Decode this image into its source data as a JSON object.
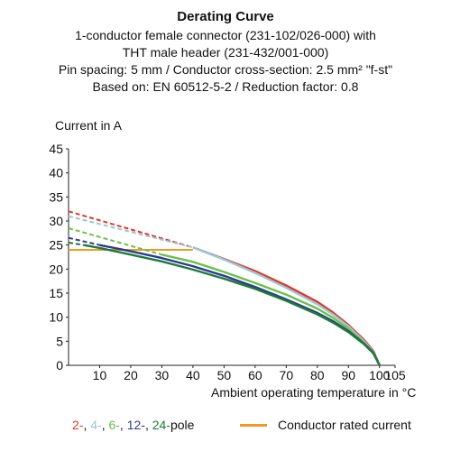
{
  "chart_data": {
    "type": "line",
    "title": "Derating Curve",
    "subtitle_lines": [
      "1-conductor female connector (231-102/026-000) with",
      "THT male header (231-432/001-000)",
      "Pin spacing: 5 mm / Conductor cross-section: 2.5 mm² \"f-st\"",
      "Based on: EN 60512-5-2 / Reduction factor: 0.8"
    ],
    "ylabel": "Current in A",
    "xlabel": "Ambient operating temperature in °C",
    "xlim": [
      0,
      105
    ],
    "ylim": [
      0,
      45
    ],
    "xticks": [
      10,
      20,
      30,
      40,
      50,
      60,
      70,
      80,
      90,
      100,
      105
    ],
    "yticks": [
      0,
      5,
      10,
      15,
      20,
      25,
      30,
      35,
      40,
      45
    ],
    "grid": false,
    "legend_position": "bottom",
    "rated_current": {
      "name": "Conductor rated current",
      "color": "#f39a1e",
      "x": [
        0,
        40
      ],
      "y": [
        24,
        24
      ]
    },
    "series": [
      {
        "label": "2",
        "color": "#e2382c",
        "dashed": {
          "x": [
            0,
            40
          ],
          "y": [
            32,
            24.5
          ]
        },
        "solid": {
          "x": [
            40,
            50,
            60,
            70,
            80,
            85,
            90,
            95,
            98,
            100
          ],
          "y": [
            24.5,
            22.1,
            19.6,
            16.6,
            13.2,
            11.0,
            8.4,
            5.3,
            3.0,
            0
          ]
        }
      },
      {
        "label": "4",
        "color": "#98c8d6",
        "dashed": {
          "x": [
            0,
            40
          ],
          "y": [
            31,
            24.5
          ]
        },
        "solid": {
          "x": [
            40,
            50,
            60,
            70,
            80,
            85,
            90,
            95,
            98,
            100
          ],
          "y": [
            24.5,
            22.0,
            19.2,
            16.1,
            12.7,
            10.6,
            8.1,
            5.0,
            2.8,
            0
          ]
        }
      },
      {
        "label": "6",
        "color": "#6cc04a",
        "dashed": {
          "x": [
            0,
            30
          ],
          "y": [
            28.5,
            23
          ]
        },
        "solid": {
          "x": [
            30,
            40,
            50,
            60,
            70,
            80,
            85,
            90,
            95,
            98,
            100
          ],
          "y": [
            23,
            21.5,
            19.4,
            17.1,
            14.7,
            11.8,
            9.9,
            7.6,
            4.7,
            2.7,
            0
          ]
        }
      },
      {
        "label": "12",
        "color": "#2e3a8c",
        "dashed": {
          "x": [
            0,
            10
          ],
          "y": [
            26.5,
            25
          ]
        },
        "solid": {
          "x": [
            10,
            20,
            30,
            40,
            50,
            60,
            70,
            80,
            85,
            90,
            95,
            98,
            100
          ],
          "y": [
            25,
            23.7,
            22.3,
            20.6,
            18.6,
            16.3,
            13.7,
            10.9,
            9.2,
            7.1,
            4.5,
            2.6,
            0
          ]
        }
      },
      {
        "label": "24",
        "color": "#1e7a3c",
        "dashed": {
          "x": [
            0,
            5
          ],
          "y": [
            25.5,
            25
          ]
        },
        "solid": {
          "x": [
            5,
            10,
            20,
            30,
            40,
            50,
            60,
            70,
            80,
            85,
            90,
            95,
            98,
            100
          ],
          "y": [
            25,
            24.4,
            23.0,
            21.6,
            19.9,
            18.0,
            15.9,
            13.4,
            10.6,
            8.9,
            6.9,
            4.4,
            2.5,
            0
          ]
        }
      }
    ]
  },
  "legend": {
    "pole_items": [
      {
        "text": "2-",
        "color": "#e2382c"
      },
      {
        "text": ", ",
        "color": "#111111"
      },
      {
        "text": "4-",
        "color": "#98c8d6"
      },
      {
        "text": ", ",
        "color": "#111111"
      },
      {
        "text": "6-",
        "color": "#6cc04a"
      },
      {
        "text": ", ",
        "color": "#111111"
      },
      {
        "text": "12-",
        "color": "#2e3a8c"
      },
      {
        "text": ", ",
        "color": "#111111"
      },
      {
        "text": "24-",
        "color": "#1e7a3c"
      },
      {
        "text": "pole",
        "color": "#111111"
      }
    ],
    "rated_label": "Conductor rated current"
  }
}
